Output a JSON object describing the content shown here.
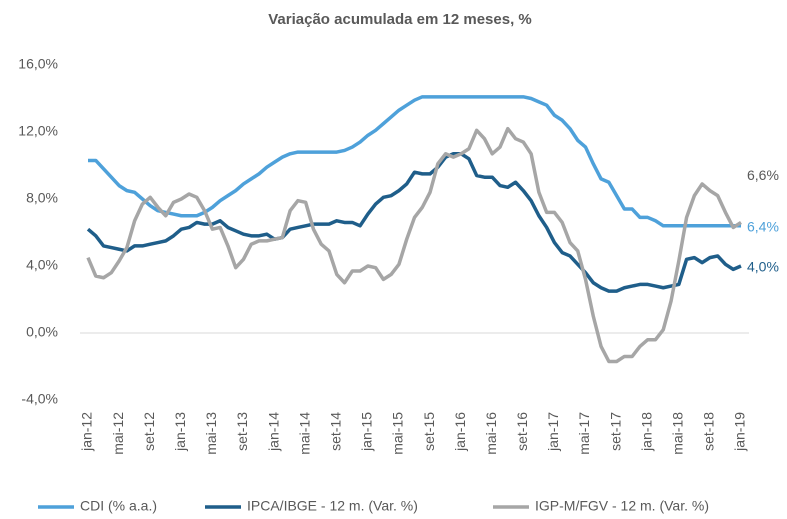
{
  "chart_data": {
    "type": "line",
    "title": "Variação acumulada em 12 meses, %",
    "categories": [
      "jan-12",
      null,
      null,
      null,
      "mai-12",
      null,
      null,
      null,
      "set-12",
      null,
      null,
      null,
      "jan-13",
      null,
      null,
      null,
      "mai-13",
      null,
      null,
      null,
      "set-13",
      null,
      null,
      null,
      "jan-14",
      null,
      null,
      null,
      "mai-14",
      null,
      null,
      null,
      "set-14",
      null,
      null,
      null,
      "jan-15",
      null,
      null,
      null,
      "mai-15",
      null,
      null,
      null,
      "set-15",
      null,
      null,
      null,
      "jan-16",
      null,
      null,
      null,
      "mai-16",
      null,
      null,
      null,
      "set-16",
      null,
      null,
      null,
      "jan-17",
      null,
      null,
      null,
      "mai-17",
      null,
      null,
      null,
      "set-17",
      null,
      null,
      null,
      "jan-18",
      null,
      null,
      null,
      "mai-18",
      null,
      null,
      null,
      "set-18",
      null,
      null,
      null,
      "jan-19"
    ],
    "series": [
      {
        "name": "CDI (% a.a.)",
        "color": "#4ea1da",
        "values": [
          10.3,
          10.3,
          9.8,
          9.3,
          8.8,
          8.5,
          8.4,
          8.0,
          7.6,
          7.3,
          7.2,
          7.1,
          7.0,
          7.0,
          7.0,
          7.2,
          7.5,
          7.9,
          8.2,
          8.5,
          8.9,
          9.2,
          9.5,
          9.9,
          10.2,
          10.5,
          10.7,
          10.8,
          10.8,
          10.8,
          10.8,
          10.8,
          10.8,
          10.9,
          11.1,
          11.4,
          11.8,
          12.1,
          12.5,
          12.9,
          13.3,
          13.6,
          13.9,
          14.1,
          14.1,
          14.1,
          14.1,
          14.1,
          14.1,
          14.1,
          14.1,
          14.1,
          14.1,
          14.1,
          14.1,
          14.1,
          14.1,
          14.0,
          13.8,
          13.6,
          13.0,
          12.7,
          12.2,
          11.5,
          11.1,
          10.1,
          9.2,
          9.0,
          8.2,
          7.4,
          7.4,
          6.9,
          6.9,
          6.7,
          6.4,
          6.4,
          6.4,
          6.4,
          6.4,
          6.4,
          6.4,
          6.4,
          6.4,
          6.4,
          6.4
        ],
        "value_labels": [
          null,
          null,
          null,
          null,
          null,
          null,
          null,
          null,
          null,
          null,
          null,
          null,
          null,
          null,
          null,
          null,
          null,
          null,
          null,
          null,
          null,
          null,
          null,
          null,
          null,
          null,
          null,
          null,
          null,
          null,
          null,
          null,
          null,
          null,
          null,
          null,
          null,
          null,
          null,
          null,
          null,
          null,
          null,
          null,
          null,
          null,
          null,
          null,
          null,
          null,
          null,
          null,
          null,
          null,
          null,
          null,
          null,
          null,
          null,
          null,
          null,
          null,
          null,
          null,
          null,
          null,
          null,
          null,
          null,
          null,
          null,
          null,
          null,
          null,
          null,
          null,
          null,
          null,
          null,
          null,
          null,
          null,
          null,
          null,
          "6,4%"
        ]
      },
      {
        "name": "IPCA/IBGE - 12 m. (Var. %)",
        "color": "#1f5e8a",
        "values": [
          6.2,
          5.8,
          5.2,
          5.1,
          5.0,
          4.9,
          5.2,
          5.2,
          5.3,
          5.4,
          5.5,
          5.8,
          6.2,
          6.3,
          6.6,
          6.5,
          6.5,
          6.7,
          6.3,
          6.1,
          5.9,
          5.8,
          5.8,
          5.9,
          5.6,
          5.7,
          6.2,
          6.3,
          6.4,
          6.5,
          6.5,
          6.5,
          6.7,
          6.6,
          6.6,
          6.4,
          7.1,
          7.7,
          8.1,
          8.2,
          8.5,
          8.9,
          9.6,
          9.5,
          9.5,
          9.9,
          10.5,
          10.7,
          10.7,
          10.4,
          9.4,
          9.3,
          9.3,
          8.8,
          8.7,
          9.0,
          8.5,
          7.9,
          7.0,
          6.3,
          5.4,
          4.8,
          4.6,
          4.1,
          3.6,
          3.0,
          2.7,
          2.5,
          2.5,
          2.7,
          2.8,
          2.9,
          2.9,
          2.8,
          2.7,
          2.8,
          2.9,
          4.4,
          4.5,
          4.2,
          4.5,
          4.6,
          4.1,
          3.8,
          4.0
        ],
        "value_labels": [
          null,
          null,
          null,
          null,
          null,
          null,
          null,
          null,
          null,
          null,
          null,
          null,
          null,
          null,
          null,
          null,
          null,
          null,
          null,
          null,
          null,
          null,
          null,
          null,
          null,
          null,
          null,
          null,
          null,
          null,
          null,
          null,
          null,
          null,
          null,
          null,
          null,
          null,
          null,
          null,
          null,
          null,
          null,
          null,
          null,
          null,
          null,
          null,
          null,
          null,
          null,
          null,
          null,
          null,
          null,
          null,
          null,
          null,
          null,
          null,
          null,
          null,
          null,
          null,
          null,
          null,
          null,
          null,
          null,
          null,
          null,
          null,
          null,
          null,
          null,
          null,
          null,
          null,
          null,
          null,
          null,
          null,
          null,
          null,
          "4,0%"
        ]
      },
      {
        "name": "IGP-M/FGV  - 12 m. (Var. %)",
        "color": "#a6a6a6",
        "values": [
          4.5,
          3.4,
          3.3,
          3.6,
          4.3,
          5.1,
          6.7,
          7.7,
          8.1,
          7.5,
          7.0,
          7.8,
          8.0,
          8.3,
          8.1,
          7.3,
          6.2,
          6.3,
          5.2,
          3.9,
          4.4,
          5.3,
          5.5,
          5.5,
          5.6,
          5.7,
          7.3,
          7.9,
          7.8,
          6.2,
          5.3,
          4.9,
          3.5,
          3.0,
          3.7,
          3.7,
          4.0,
          3.9,
          3.2,
          3.5,
          4.1,
          5.6,
          6.9,
          7.5,
          8.4,
          10.1,
          10.7,
          10.5,
          10.7,
          11.0,
          12.1,
          11.6,
          10.7,
          11.1,
          12.2,
          11.6,
          11.4,
          10.7,
          8.4,
          7.2,
          7.2,
          6.6,
          5.4,
          4.9,
          3.2,
          1.0,
          -0.8,
          -1.7,
          -1.7,
          -1.4,
          -1.4,
          -0.8,
          -0.4,
          -0.4,
          0.2,
          1.9,
          4.3,
          6.9,
          8.2,
          8.9,
          8.5,
          8.2,
          7.2,
          6.3,
          6.6
        ],
        "value_labels": [
          null,
          null,
          null,
          null,
          null,
          null,
          null,
          null,
          null,
          null,
          null,
          null,
          null,
          null,
          null,
          null,
          null,
          null,
          null,
          null,
          null,
          null,
          null,
          null,
          null,
          null,
          null,
          null,
          null,
          null,
          null,
          null,
          null,
          null,
          null,
          null,
          null,
          null,
          null,
          null,
          null,
          null,
          null,
          null,
          null,
          null,
          null,
          null,
          null,
          null,
          null,
          null,
          null,
          null,
          null,
          null,
          null,
          null,
          null,
          null,
          null,
          null,
          null,
          null,
          null,
          null,
          null,
          null,
          null,
          null,
          null,
          null,
          null,
          null,
          null,
          null,
          null,
          null,
          null,
          null,
          null,
          null,
          null,
          null,
          "6,6%"
        ]
      }
    ],
    "ylim": [
      -4,
      16
    ],
    "yticks": [
      {
        "value": -4,
        "label": "-4,0%"
      },
      {
        "value": 0,
        "label": "0,0%"
      },
      {
        "value": 4,
        "label": "4,0%"
      },
      {
        "value": 8,
        "label": "8,0%"
      },
      {
        "value": 12,
        "label": "12,0%"
      },
      {
        "value": 16,
        "label": "16,0%"
      }
    ],
    "grid": false,
    "legend": "bottom"
  }
}
